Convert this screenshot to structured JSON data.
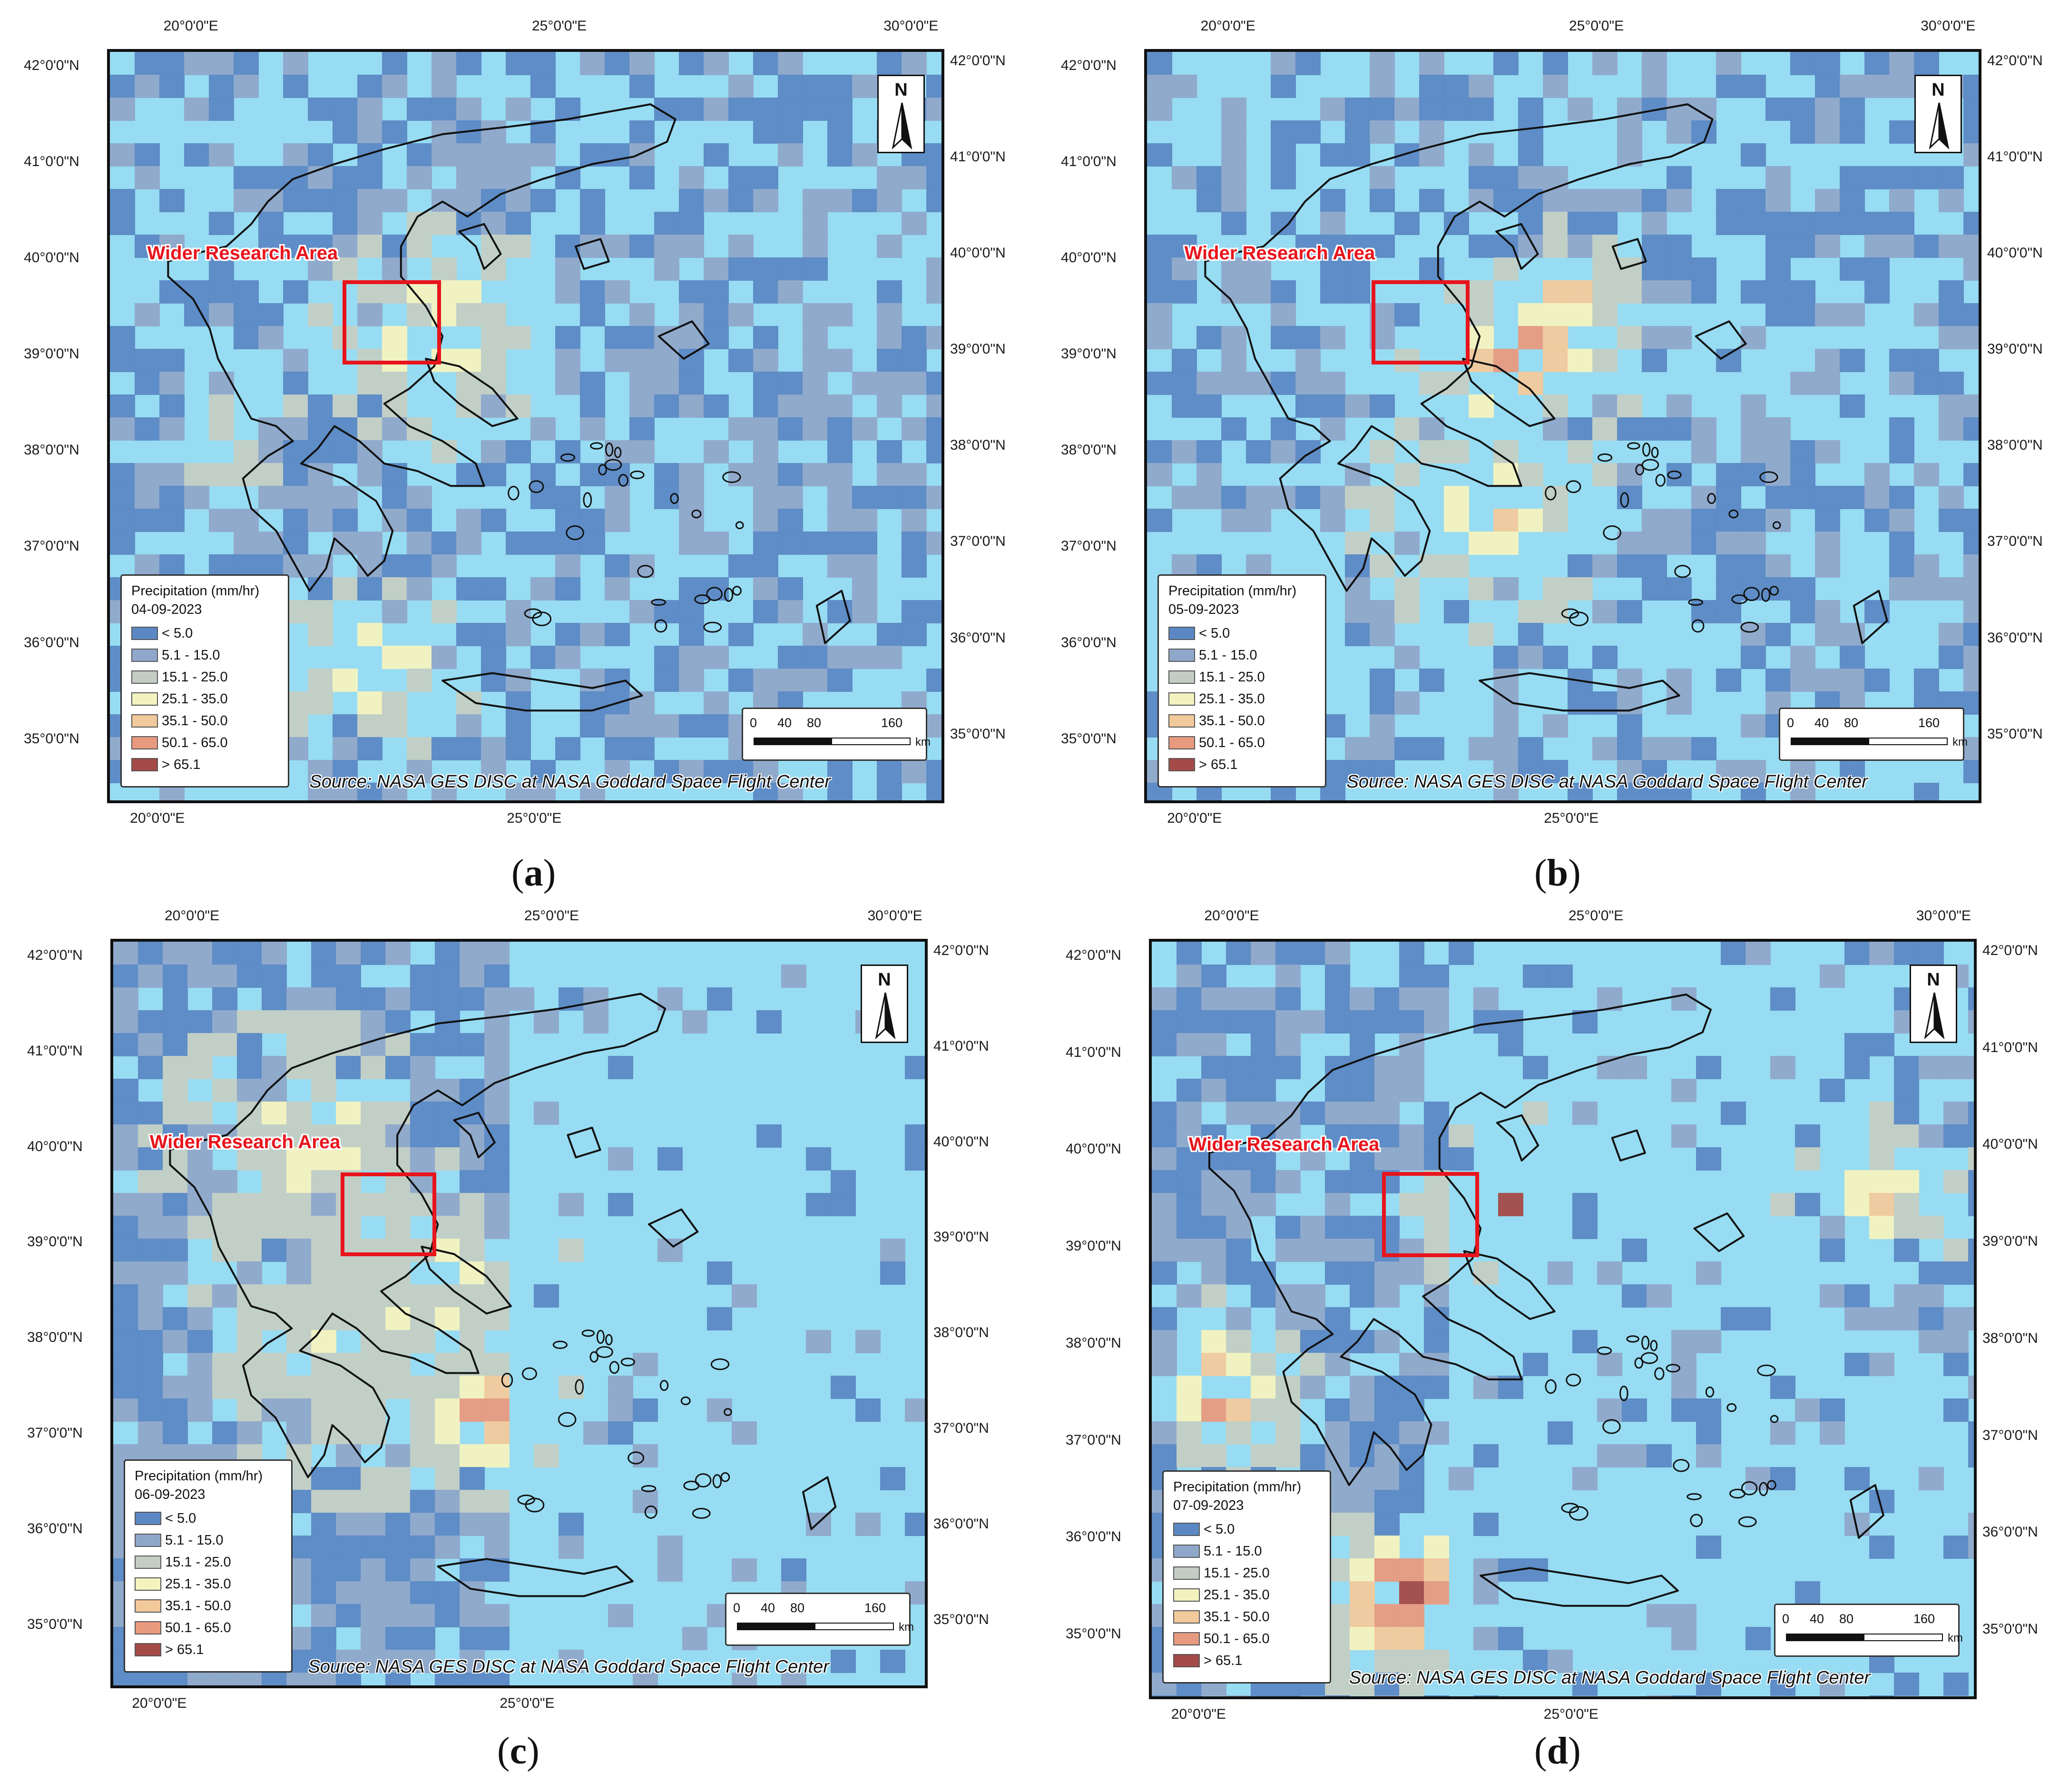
{
  "shared": {
    "top_lon_labels": [
      "20°0'0\"E",
      "25°0'0\"E",
      "30°0'0\"E"
    ],
    "bottom_lon_labels": [
      "20°0'0\"E",
      "25°0'0\"E"
    ],
    "lat_labels": [
      "42°0'0\"N",
      "41°0'0\"N",
      "40°0'0\"N",
      "39°0'0\"N",
      "38°0'0\"N",
      "37°0'0\"N",
      "36°0'0\"N",
      "35°0'0\"N"
    ],
    "north_label": "N",
    "research_area_label": "Wider Research Area",
    "legend_title": "Precipitation (mm/hr)",
    "legend_classes": [
      {
        "label": "< 5.0",
        "color": "#5b88c4"
      },
      {
        "label": "5.1 - 15.0",
        "color": "#8fa7c9"
      },
      {
        "label": "15.1 - 25.0",
        "color": "#c3cdc4"
      },
      {
        "label": "25.1 - 35.0",
        "color": "#f4f2bf"
      },
      {
        "label": "35.1 - 50.0",
        "color": "#f2c99b"
      },
      {
        "label": "50.1 - 65.0",
        "color": "#e89a7f"
      },
      {
        "label": "> 65.1",
        "color": "#a44a48"
      }
    ],
    "scale_labels": [
      "0",
      "40",
      "80",
      "160"
    ],
    "scale_unit": "km",
    "source": "Source: NASA GES DISC at NASA Goddard Space Flight Center",
    "sea_color": "#97dcf2"
  },
  "panels": [
    {
      "label": "a",
      "date": "04-09-2023"
    },
    {
      "label": "b",
      "date": "05-09-2023"
    },
    {
      "label": "c",
      "date": "06-09-2023"
    },
    {
      "label": "d",
      "date": "07-09-2023"
    }
  ]
}
